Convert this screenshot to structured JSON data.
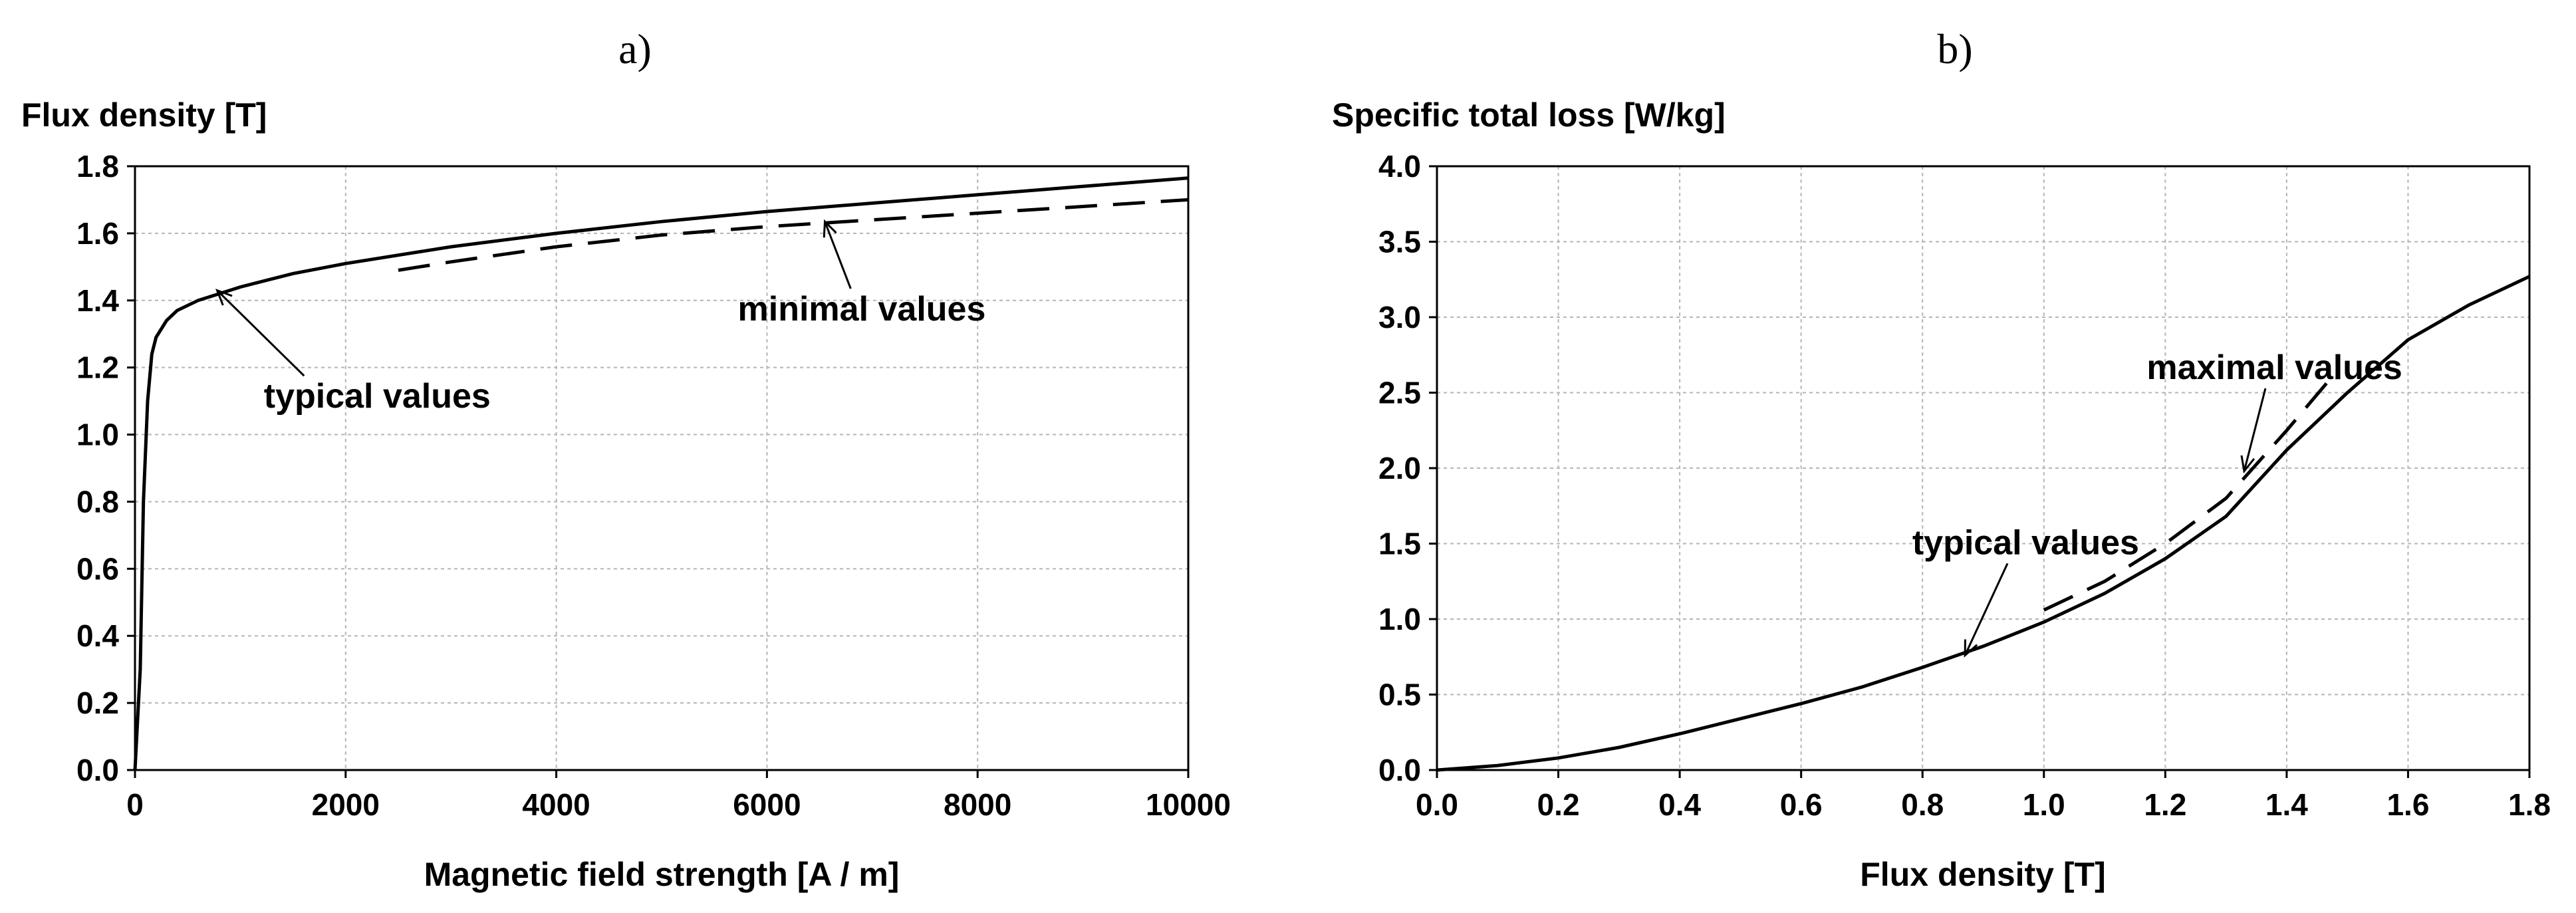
{
  "chart_data": [
    {
      "id": "a",
      "type": "line",
      "panel_label": "a)",
      "title": "",
      "ylabel": "Flux density  [T]",
      "xlabel": "Magnetic field strength [A  / m]",
      "xlim": [
        0,
        10000
      ],
      "ylim": [
        0,
        1.8
      ],
      "xticks": [
        "0",
        "2000",
        "4000",
        "6000",
        "8000",
        "10000"
      ],
      "yticks": [
        "0.0",
        "0.2",
        "0.4",
        "0.6",
        "0.8",
        "1.0",
        "1.2",
        "1.4",
        "1.6",
        "1.8"
      ],
      "grid": true,
      "series": [
        {
          "name": "typical values",
          "style": "solid",
          "x": [
            0,
            50,
            80,
            120,
            160,
            200,
            300,
            400,
            600,
            800,
            1000,
            1500,
            2000,
            3000,
            4000,
            5000,
            6000,
            7000,
            8000,
            9000,
            10000
          ],
          "y": [
            0,
            0.3,
            0.8,
            1.1,
            1.24,
            1.29,
            1.34,
            1.37,
            1.4,
            1.42,
            1.44,
            1.48,
            1.51,
            1.56,
            1.6,
            1.635,
            1.665,
            1.69,
            1.715,
            1.74,
            1.765
          ]
        },
        {
          "name": "minimal values",
          "style": "dashed",
          "x": [
            2500,
            3000,
            4000,
            5000,
            6000,
            7000,
            8000,
            9000,
            10000
          ],
          "y": [
            1.49,
            1.515,
            1.56,
            1.595,
            1.62,
            1.64,
            1.66,
            1.68,
            1.7
          ]
        }
      ],
      "annotations": [
        {
          "text": "typical values",
          "at": [
            2300,
            1.08
          ],
          "arrow_to": [
            780,
            1.43
          ]
        },
        {
          "text": "minimal values",
          "at": [
            6900,
            1.34
          ],
          "arrow_to": [
            6550,
            1.635
          ]
        }
      ]
    },
    {
      "id": "b",
      "type": "line",
      "panel_label": "b)",
      "title": "",
      "ylabel": "Specific total loss  [W/kg]",
      "xlabel": "Flux density  [T]",
      "xlim": [
        0,
        1.8
      ],
      "ylim": [
        0,
        4.0
      ],
      "xticks": [
        "0.0",
        "0.2",
        "0.4",
        "0.6",
        "0.8",
        "1.0",
        "1.2",
        "1.4",
        "1.6",
        "1.8"
      ],
      "yticks": [
        "0.0",
        "0.5",
        "1.0",
        "1.5",
        "2.0",
        "2.5",
        "3.0",
        "3.5",
        "4.0"
      ],
      "grid": true,
      "series": [
        {
          "name": "typical values",
          "style": "solid",
          "x": [
            0,
            0.1,
            0.2,
            0.3,
            0.4,
            0.5,
            0.6,
            0.7,
            0.8,
            0.9,
            1.0,
            1.1,
            1.2,
            1.3,
            1.35,
            1.4,
            1.5,
            1.6,
            1.7,
            1.8
          ],
          "y": [
            0,
            0.03,
            0.08,
            0.15,
            0.24,
            0.34,
            0.44,
            0.55,
            0.68,
            0.82,
            0.98,
            1.17,
            1.4,
            1.68,
            1.9,
            2.12,
            2.5,
            2.85,
            3.08,
            3.27
          ]
        },
        {
          "name": "maximal values",
          "style": "dashed",
          "x": [
            1.0,
            1.1,
            1.2,
            1.3,
            1.4,
            1.48
          ],
          "y": [
            1.06,
            1.25,
            1.5,
            1.8,
            2.25,
            2.63
          ]
        }
      ],
      "annotations": [
        {
          "text": "maximal values",
          "at": [
            1.38,
            2.59
          ],
          "arrow_to": [
            1.33,
            1.98
          ]
        },
        {
          "text": "typical values",
          "at": [
            0.97,
            1.43
          ],
          "arrow_to": [
            0.87,
            0.76
          ]
        }
      ]
    }
  ]
}
